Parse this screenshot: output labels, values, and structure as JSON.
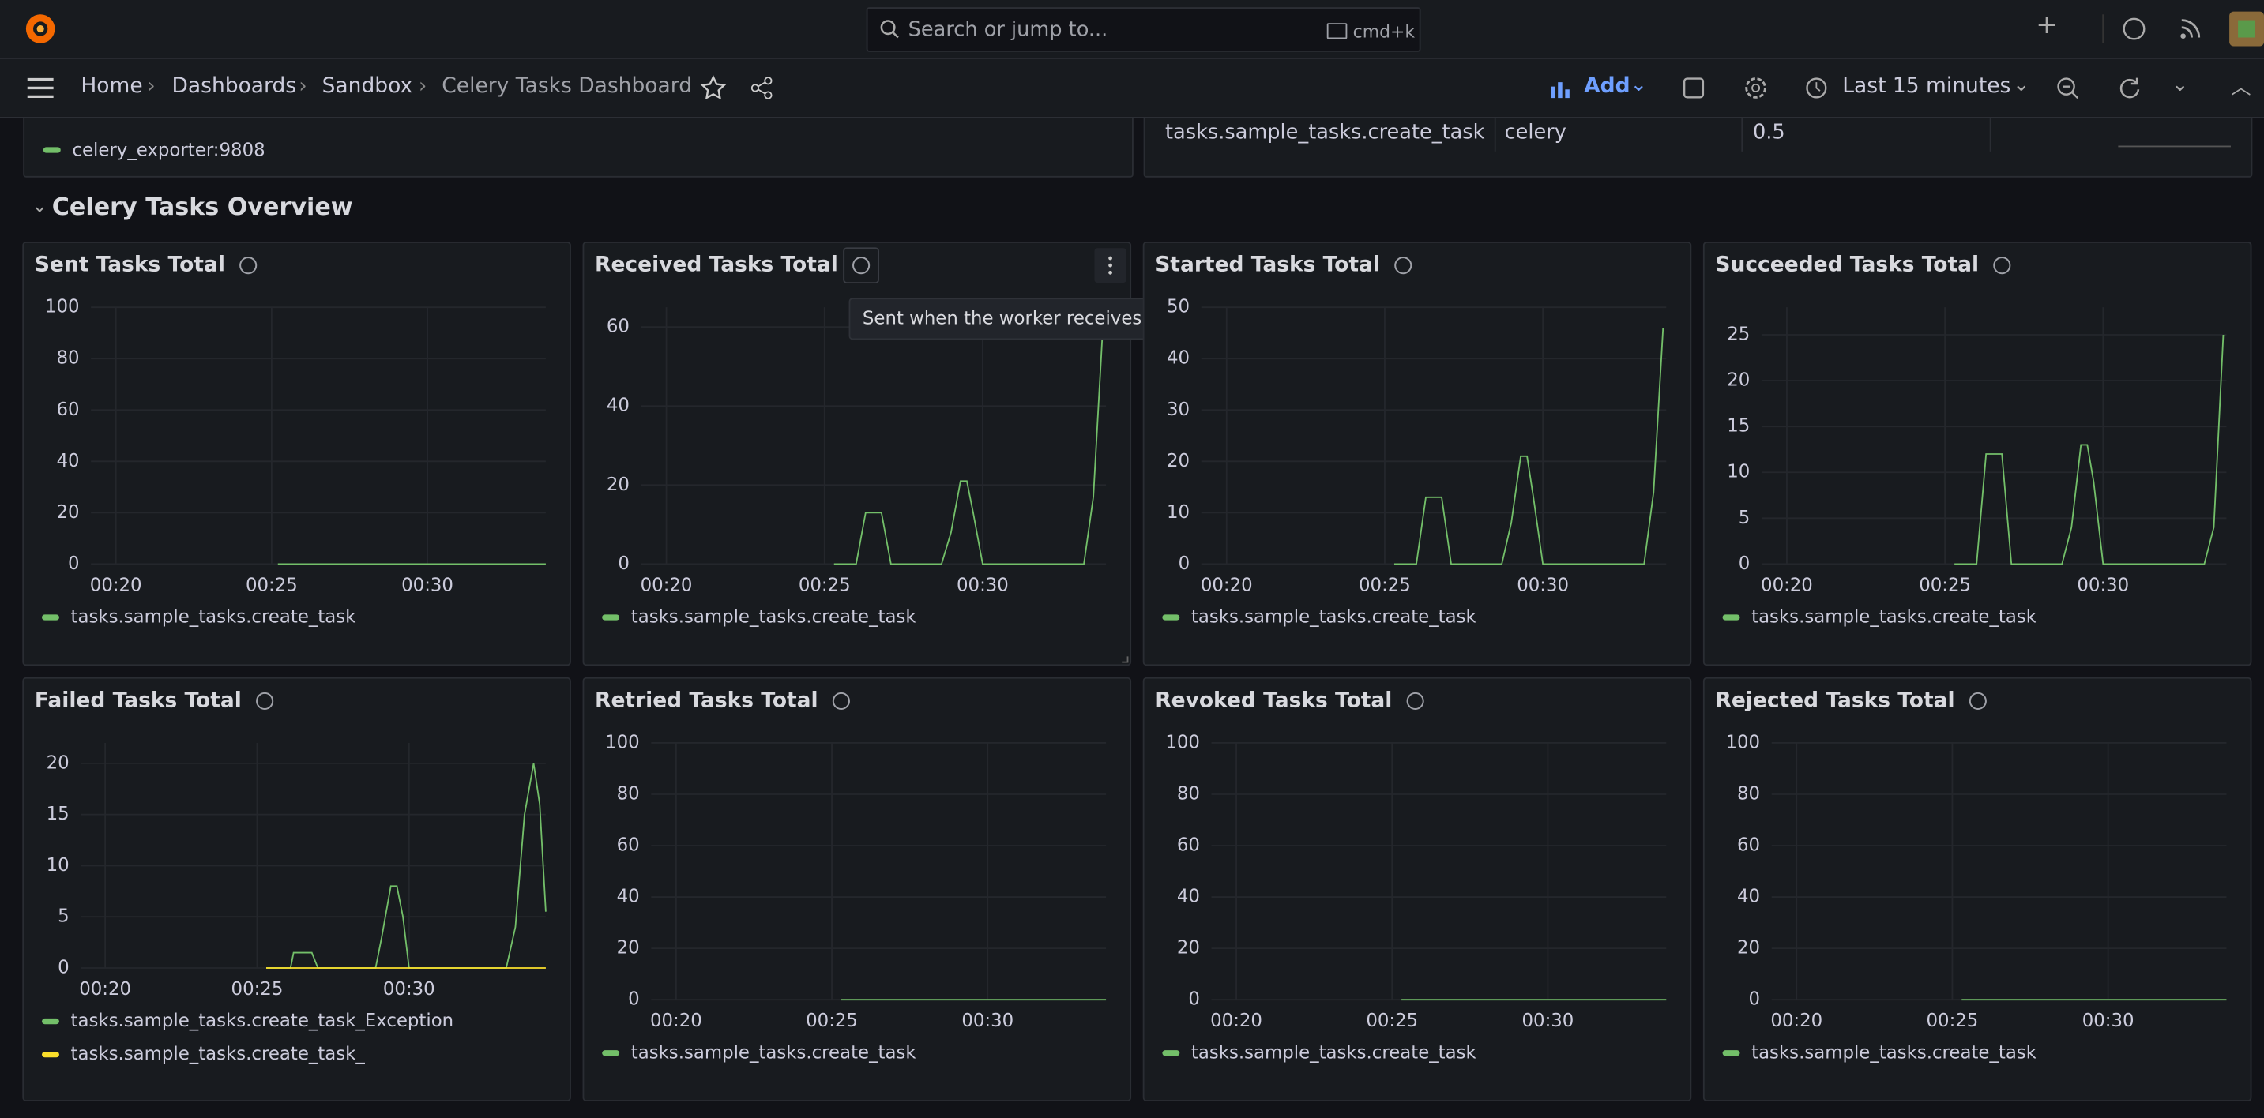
{
  "header": {
    "search_placeholder": "Search or jump to...",
    "shortcut": "cmd+k"
  },
  "breadcrumbs": [
    "Home",
    "Dashboards",
    "Sandbox",
    "Celery Tasks Dashboard"
  ],
  "toolbar": {
    "add": "Add",
    "time_range": "Last 15 minutes"
  },
  "top_panels": {
    "legend": "celery_exporter:9808",
    "table_row": [
      "tasks.sample_tasks.create_task",
      "celery",
      "0.5"
    ]
  },
  "section_title": "Celery Tasks Overview",
  "tooltip": "Sent when the worker receives a task",
  "chart_data": [
    {
      "type": "line",
      "title": "Sent Tasks Total",
      "x": [
        25.2,
        33.8
      ],
      "series": [
        {
          "name": "tasks.sample_tasks.create_task",
          "color": "#73bf69",
          "values": [
            0,
            0
          ]
        }
      ],
      "xlim": [
        19.2,
        33.8
      ],
      "xticks": [
        {
          "value": 20,
          "label": "00:20"
        },
        {
          "value": 25,
          "label": "00:25"
        },
        {
          "value": 30,
          "label": "00:30"
        }
      ],
      "ylim": [
        0,
        100
      ],
      "yticks": [
        0,
        20,
        40,
        60,
        80,
        100
      ]
    },
    {
      "type": "line",
      "title": "Received Tasks Total",
      "x": [
        25.3,
        26.0,
        26.3,
        26.8,
        27.1,
        28.7,
        29.0,
        29.3,
        29.5,
        29.7,
        30.0,
        33.2,
        33.5,
        33.8
      ],
      "series": [
        {
          "name": "tasks.sample_tasks.create_task",
          "color": "#73bf69",
          "values": [
            0,
            0,
            13,
            13,
            0,
            0,
            8,
            21,
            21,
            13,
            0,
            0,
            17,
            60
          ]
        }
      ],
      "xlim": [
        19.2,
        33.9
      ],
      "xticks": [
        {
          "value": 20,
          "label": "00:20"
        },
        {
          "value": 25,
          "label": "00:25"
        },
        {
          "value": 30,
          "label": "00:30"
        }
      ],
      "ylim": [
        0,
        65
      ],
      "yticks": [
        0,
        20,
        40,
        60
      ]
    },
    {
      "type": "line",
      "title": "Started Tasks Total",
      "x": [
        25.3,
        26.0,
        26.3,
        26.8,
        27.1,
        28.7,
        29.0,
        29.3,
        29.5,
        29.7,
        30.0,
        33.2,
        33.5,
        33.8
      ],
      "series": [
        {
          "name": "tasks.sample_tasks.create_task",
          "color": "#73bf69",
          "values": [
            0,
            0,
            13,
            13,
            0,
            0,
            8,
            21,
            21,
            13,
            0,
            0,
            14,
            46
          ]
        }
      ],
      "xlim": [
        19.2,
        33.9
      ],
      "xticks": [
        {
          "value": 20,
          "label": "00:20"
        },
        {
          "value": 25,
          "label": "00:25"
        },
        {
          "value": 30,
          "label": "00:30"
        }
      ],
      "ylim": [
        0,
        50
      ],
      "yticks": [
        0,
        10,
        20,
        30,
        40,
        50
      ]
    },
    {
      "type": "line",
      "title": "Succeeded Tasks Total",
      "x": [
        25.3,
        26.0,
        26.3,
        26.8,
        27.1,
        28.7,
        29.0,
        29.3,
        29.5,
        29.7,
        30.0,
        33.2,
        33.5,
        33.8
      ],
      "series": [
        {
          "name": "tasks.sample_tasks.create_task",
          "color": "#73bf69",
          "values": [
            0,
            0,
            12,
            12,
            0,
            0,
            4,
            13,
            13,
            9,
            0,
            0,
            4,
            25
          ]
        }
      ],
      "xlim": [
        19.2,
        33.9
      ],
      "xticks": [
        {
          "value": 20,
          "label": "00:20"
        },
        {
          "value": 25,
          "label": "00:25"
        },
        {
          "value": 30,
          "label": "00:30"
        }
      ],
      "ylim": [
        0,
        28
      ],
      "yticks": [
        0,
        5,
        10,
        15,
        20,
        25
      ]
    },
    {
      "type": "line",
      "title": "Failed Tasks Total",
      "x": [
        25.3,
        26.1,
        26.2,
        26.8,
        27.0,
        28.9,
        29.1,
        29.4,
        29.6,
        29.8,
        30.0,
        33.2,
        33.5,
        33.8,
        34.1,
        34.3,
        34.5
      ],
      "series": [
        {
          "name": "tasks.sample_tasks.create_task_Exception",
          "color": "#73bf69",
          "values": [
            0,
            0,
            1.5,
            1.5,
            0,
            0,
            3,
            8,
            8,
            5,
            0,
            0,
            4,
            15,
            20,
            16,
            5.5
          ]
        },
        {
          "name": "tasks.sample_tasks.create_task_",
          "color": "#fade2a",
          "values": [
            0,
            0,
            0,
            0,
            0,
            0,
            0,
            0,
            0,
            0,
            0,
            0,
            0,
            0,
            0,
            0,
            0
          ]
        }
      ],
      "xlim": [
        19.2,
        34.5
      ],
      "xticks": [
        {
          "value": 20,
          "label": "00:20"
        },
        {
          "value": 25,
          "label": "00:25"
        },
        {
          "value": 30,
          "label": "00:30"
        }
      ],
      "ylim": [
        0,
        22
      ],
      "yticks": [
        0,
        5,
        10,
        15,
        20
      ]
    },
    {
      "type": "line",
      "title": "Retried Tasks Total",
      "x": [
        25.3,
        33.8
      ],
      "series": [
        {
          "name": "tasks.sample_tasks.create_task",
          "color": "#73bf69",
          "values": [
            0,
            0
          ]
        }
      ],
      "xlim": [
        19.2,
        33.8
      ],
      "xticks": [
        {
          "value": 20,
          "label": "00:20"
        },
        {
          "value": 25,
          "label": "00:25"
        },
        {
          "value": 30,
          "label": "00:30"
        }
      ],
      "ylim": [
        0,
        100
      ],
      "yticks": [
        0,
        20,
        40,
        60,
        80,
        100
      ]
    },
    {
      "type": "line",
      "title": "Revoked Tasks Total",
      "x": [
        25.3,
        33.8
      ],
      "series": [
        {
          "name": "tasks.sample_tasks.create_task",
          "color": "#73bf69",
          "values": [
            0,
            0
          ]
        }
      ],
      "xlim": [
        19.2,
        33.8
      ],
      "xticks": [
        {
          "value": 20,
          "label": "00:20"
        },
        {
          "value": 25,
          "label": "00:25"
        },
        {
          "value": 30,
          "label": "00:30"
        }
      ],
      "ylim": [
        0,
        100
      ],
      "yticks": [
        0,
        20,
        40,
        60,
        80,
        100
      ]
    },
    {
      "type": "line",
      "title": "Rejected Tasks Total",
      "x": [
        25.3,
        33.8
      ],
      "series": [
        {
          "name": "tasks.sample_tasks.create_task",
          "color": "#73bf69",
          "values": [
            0,
            0
          ]
        }
      ],
      "xlim": [
        19.2,
        33.8
      ],
      "xticks": [
        {
          "value": 20,
          "label": "00:20"
        },
        {
          "value": 25,
          "label": "00:25"
        },
        {
          "value": 30,
          "label": "00:30"
        }
      ],
      "ylim": [
        0,
        100
      ],
      "yticks": [
        0,
        20,
        40,
        60,
        80,
        100
      ]
    }
  ]
}
